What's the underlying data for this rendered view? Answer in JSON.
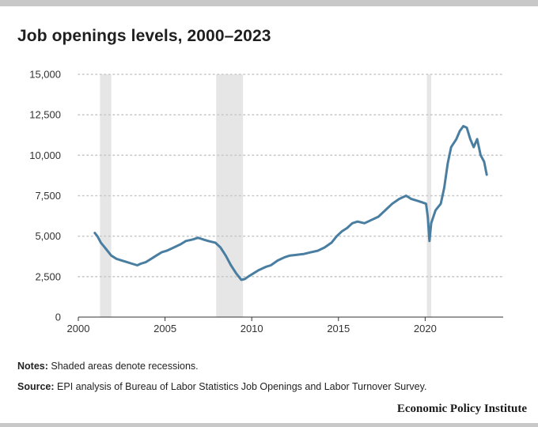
{
  "title": "Job openings levels, 2000–2023",
  "notes": {
    "notes_label": "Notes:",
    "notes_text": "Shaded areas denote recessions.",
    "source_label": "Source:",
    "source_text": "EPI analysis of Bureau of Labor Statistics Job Openings and Labor Turnover Survey."
  },
  "brand": "Economic Policy Institute",
  "colors": {
    "line": "#4a7ea1",
    "recession": "#e6e6e6",
    "grid": "#c8c8c8",
    "top_bar": "#c8c8c8"
  },
  "chart_data": {
    "type": "line",
    "title": "Job openings levels, 2000–2023",
    "xlabel": "",
    "ylabel": "",
    "xlim": [
      2000,
      2024.5
    ],
    "ylim": [
      0,
      15000
    ],
    "x_ticks": [
      2000,
      2005,
      2010,
      2015,
      2020
    ],
    "x_tick_labels": [
      "2000",
      "2005",
      "2010",
      "2015",
      "2020"
    ],
    "y_ticks": [
      0,
      2500,
      5000,
      7500,
      10000,
      12500,
      15000
    ],
    "y_tick_labels": [
      "0",
      "2,500",
      "5,000",
      "7,500",
      "10,000",
      "12,500",
      "15,000"
    ],
    "grid": "horizontal dotted",
    "recessions": [
      {
        "start": 2001.25,
        "end": 2001.9
      },
      {
        "start": 2007.95,
        "end": 2009.5
      },
      {
        "start": 2020.1,
        "end": 2020.35
      }
    ],
    "series": [
      {
        "x": [
          2000.95,
          2001.1,
          2001.3,
          2001.6,
          2001.9,
          2002.2,
          2002.5,
          2002.8,
          2003.1,
          2003.4,
          2003.6,
          2003.9,
          2004.2,
          2004.5,
          2004.8,
          2005.1,
          2005.5,
          2005.9,
          2006.2,
          2006.6,
          2006.9,
          2007.2,
          2007.5,
          2007.9,
          2008.2,
          2008.5,
          2008.8,
          2009.1,
          2009.4,
          2009.6,
          2009.8,
          2010.1,
          2010.4,
          2010.8,
          2011.1,
          2011.5,
          2011.9,
          2012.2,
          2012.6,
          2013.0,
          2013.4,
          2013.8,
          2014.2,
          2014.6,
          2014.9,
          2015.2,
          2015.5,
          2015.8,
          2016.1,
          2016.5,
          2016.9,
          2017.3,
          2017.7,
          2018.1,
          2018.5,
          2018.9,
          2019.2,
          2019.5,
          2019.8,
          2020.05,
          2020.15,
          2020.25,
          2020.35,
          2020.6,
          2020.9,
          2021.1,
          2021.3,
          2021.5,
          2021.8,
          2022.0,
          2022.2,
          2022.4,
          2022.6,
          2022.8,
          2023.0,
          2023.2,
          2023.4,
          2023.55
        ],
        "y": [
          5200,
          5000,
          4600,
          4200,
          3800,
          3600,
          3500,
          3400,
          3300,
          3200,
          3300,
          3400,
          3600,
          3800,
          4000,
          4100,
          4300,
          4500,
          4700,
          4800,
          4900,
          4800,
          4700,
          4600,
          4300,
          3800,
          3200,
          2700,
          2300,
          2350,
          2500,
          2700,
          2900,
          3100,
          3200,
          3500,
          3700,
          3800,
          3850,
          3900,
          4000,
          4100,
          4300,
          4600,
          5000,
          5300,
          5500,
          5800,
          5900,
          5800,
          6000,
          6200,
          6600,
          7000,
          7300,
          7500,
          7300,
          7200,
          7100,
          7000,
          6200,
          4700,
          5800,
          6600,
          7000,
          8000,
          9500,
          10500,
          11000,
          11500,
          11800,
          11700,
          11000,
          10500,
          11000,
          10000,
          9600,
          8800
        ]
      }
    ]
  }
}
